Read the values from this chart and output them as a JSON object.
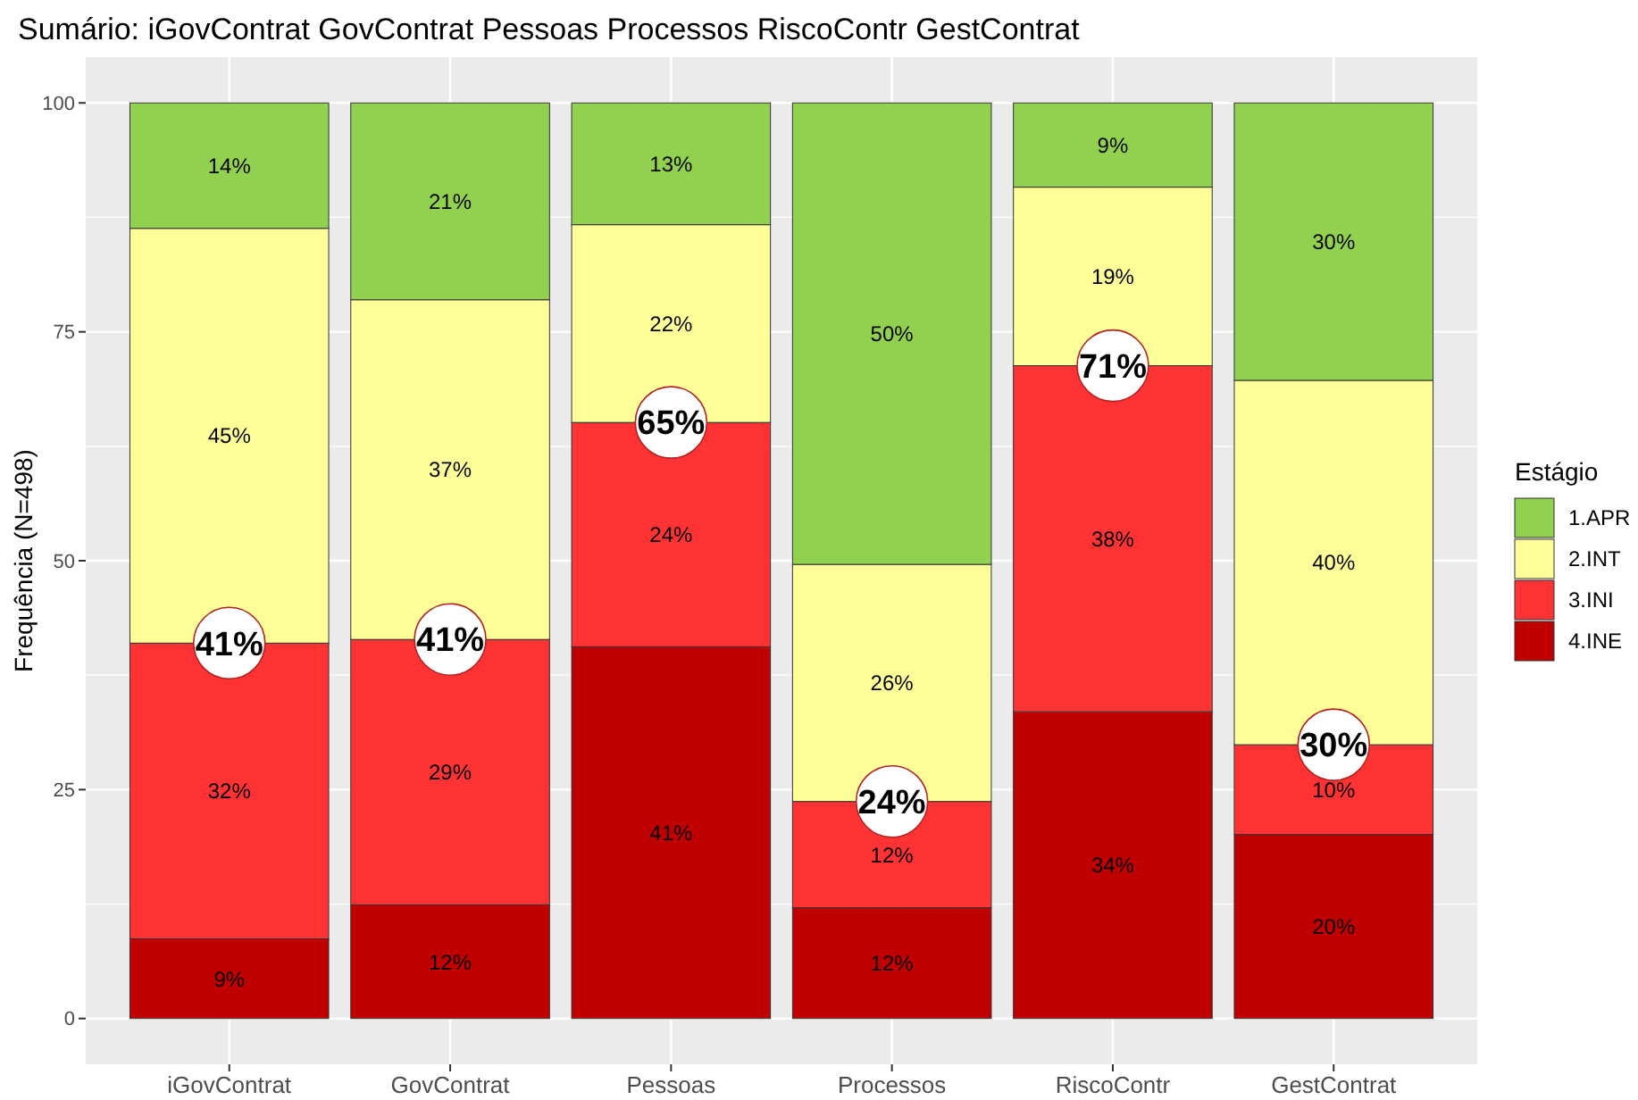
{
  "chart_data": {
    "type": "bar",
    "title": "Sumário: iGovContrat GovContrat Pessoas Processos RiscoContr GestContrat",
    "ylabel": "Frequência (N=498)",
    "legend_title": "Estágio",
    "categories": [
      "iGovContrat",
      "GovContrat",
      "Pessoas",
      "Processos",
      "RiscoContr",
      "GestContrat"
    ],
    "stacked": true,
    "ylim": [
      -5,
      105
    ],
    "yticks": [
      0,
      25,
      50,
      75,
      100
    ],
    "grid": true,
    "legend": "right",
    "series": [
      {
        "name": "4.INE",
        "color": "#c00000",
        "values": [
          8.7,
          12.4,
          40.6,
          12.1,
          33.5,
          20.1
        ],
        "value_labels": [
          "9%",
          "12%",
          "41%",
          "12%",
          "34%",
          "20%"
        ]
      },
      {
        "name": "3.INI",
        "color": "#ff3333",
        "values": [
          32.3,
          29.0,
          24.5,
          11.6,
          37.8,
          9.8
        ],
        "value_labels": [
          "32%",
          "29%",
          "24%",
          "12%",
          "38%",
          "10%"
        ]
      },
      {
        "name": "2.INT",
        "color": "#ffff99",
        "values": [
          45.3,
          37.1,
          21.6,
          25.9,
          19.5,
          39.8
        ],
        "value_labels": [
          "45%",
          "37%",
          "22%",
          "26%",
          "19%",
          "40%"
        ]
      },
      {
        "name": "1.APR",
        "color": "#92d050",
        "values": [
          13.7,
          21.5,
          13.3,
          50.4,
          9.2,
          30.3
        ],
        "value_labels": [
          "14%",
          "21%",
          "13%",
          "50%",
          "9%",
          "30%"
        ]
      }
    ],
    "annotations": [
      {
        "text": "41%",
        "x": "iGovContrat",
        "y": 41
      },
      {
        "text": "41%",
        "x": "GovContrat",
        "y": 41.4
      },
      {
        "text": "65%",
        "x": "Pessoas",
        "y": 65.1
      },
      {
        "text": "24%",
        "x": "Processos",
        "y": 23.7
      },
      {
        "text": "71%",
        "x": "RiscoContr",
        "y": 71.3
      },
      {
        "text": "30%",
        "x": "GestContrat",
        "y": 29.9
      }
    ]
  }
}
